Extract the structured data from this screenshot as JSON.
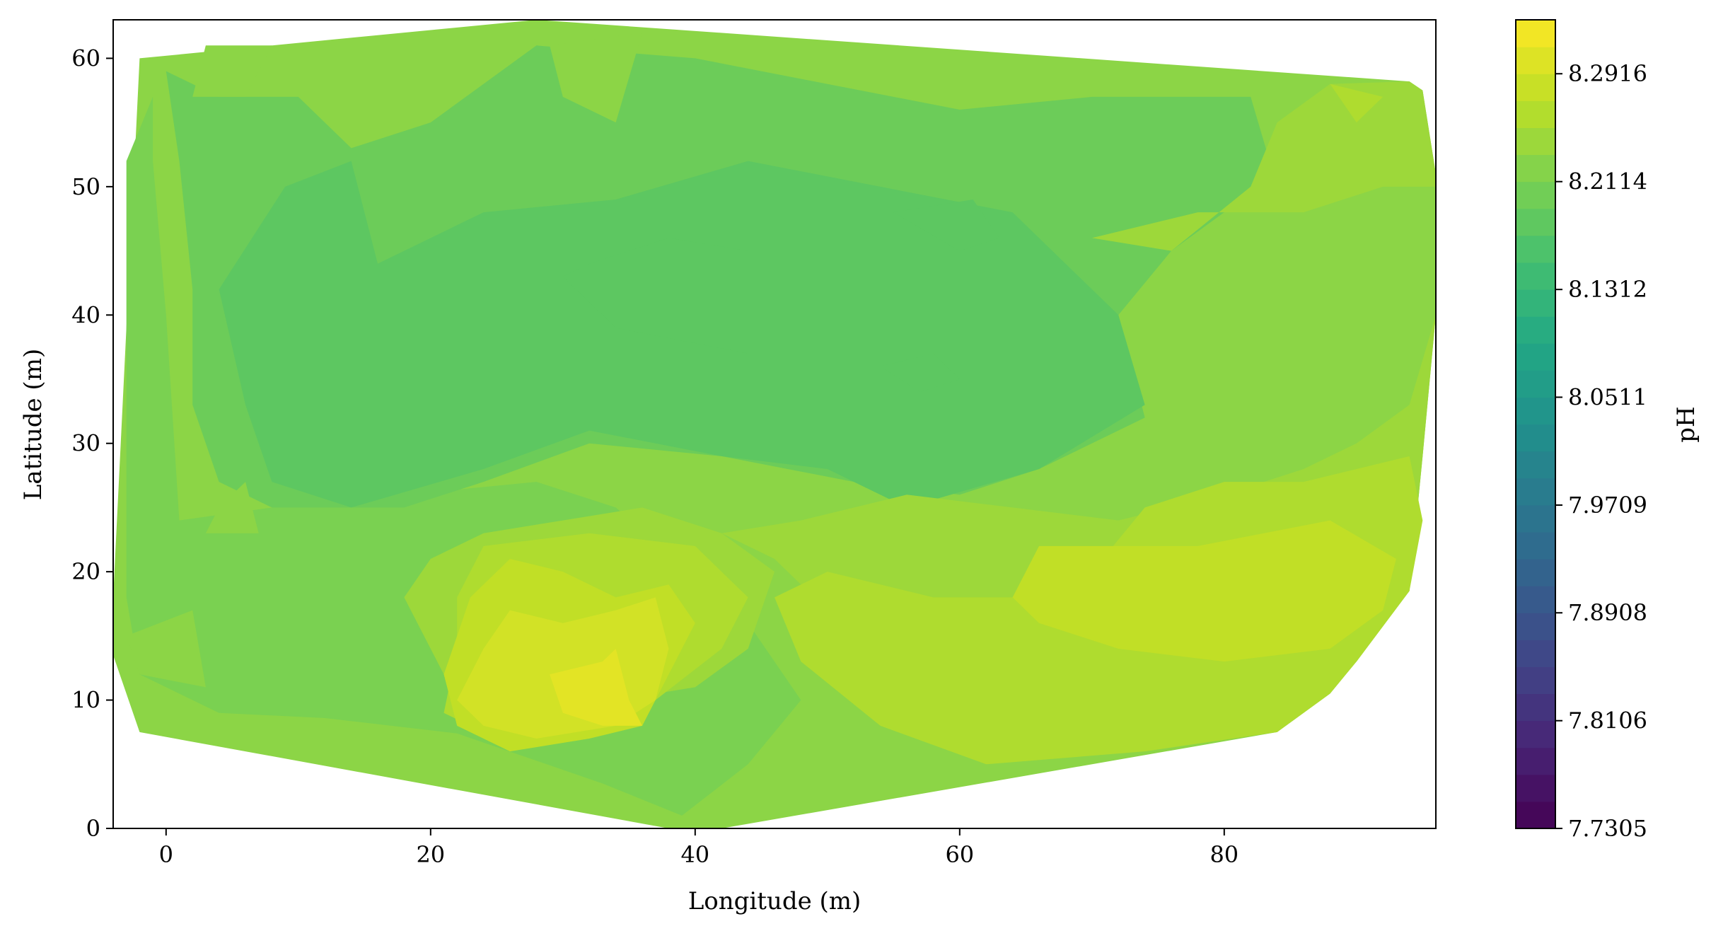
{
  "chart_data": {
    "type": "heatmap",
    "subtype": "filled-contour",
    "title": "",
    "xlabel": "Longitude (m)",
    "ylabel": "Latitude (m)",
    "xlim": [
      -4,
      96
    ],
    "ylim": [
      0,
      63
    ],
    "xticks": [
      0,
      20,
      40,
      60,
      80
    ],
    "yticks": [
      0,
      10,
      20,
      30,
      40,
      50,
      60
    ],
    "grid": false,
    "colormap": "viridis",
    "colorbar": {
      "label": "pH",
      "range": [
        7.7305,
        8.3317
      ],
      "n_levels": 30,
      "ticks": [
        7.7305,
        7.8106,
        7.8908,
        7.9709,
        8.0511,
        8.1312,
        8.2114,
        8.2916
      ],
      "tick_labels": [
        "7.7305",
        "7.8106",
        "7.8908",
        "7.9709",
        "8.0511",
        "8.1312",
        "8.2114",
        "8.2916"
      ]
    },
    "hull": [
      [
        28,
        63
      ],
      [
        94,
        58.2
      ],
      [
        95,
        57.5
      ],
      [
        96,
        51
      ],
      [
        96,
        40
      ],
      [
        95,
        29
      ],
      [
        94,
        18.5
      ],
      [
        90,
        13
      ],
      [
        88,
        10.5
      ],
      [
        84,
        7.5
      ],
      [
        42,
        0
      ],
      [
        38,
        0
      ],
      [
        -2,
        7.5
      ],
      [
        -4,
        13.5
      ],
      [
        -4,
        18
      ],
      [
        -2,
        60
      ]
    ],
    "regions": [
      {
        "level": 8.2114,
        "points": [
          [
            -1,
            57
          ],
          [
            -3,
            52
          ],
          [
            -3,
            18
          ],
          [
            -2,
            12
          ],
          [
            4,
            9
          ],
          [
            12,
            8.6
          ],
          [
            22,
            7.4
          ],
          [
            33,
            3.5
          ],
          [
            39,
            1
          ],
          [
            44,
            5
          ],
          [
            48,
            10
          ],
          [
            44,
            16
          ],
          [
            34,
            25
          ],
          [
            28,
            27
          ],
          [
            18,
            26
          ],
          [
            8,
            25
          ],
          [
            1,
            24
          ],
          [
            0,
            40
          ],
          [
            -1,
            52
          ]
        ]
      },
      {
        "level": 8.1955,
        "points": [
          [
            0,
            59
          ],
          [
            4,
            57
          ],
          [
            10,
            57
          ],
          [
            14,
            53
          ],
          [
            20,
            55
          ],
          [
            28,
            61
          ],
          [
            40,
            60
          ],
          [
            50,
            58
          ],
          [
            60,
            56
          ],
          [
            70,
            57
          ],
          [
            82,
            57
          ],
          [
            84,
            50
          ],
          [
            80,
            48
          ],
          [
            76,
            45
          ],
          [
            72,
            40
          ],
          [
            74,
            32
          ],
          [
            66,
            28
          ],
          [
            60,
            26
          ],
          [
            52,
            27
          ],
          [
            42,
            29
          ],
          [
            32,
            30
          ],
          [
            24,
            27
          ],
          [
            18,
            25
          ],
          [
            8,
            25
          ],
          [
            4,
            27
          ],
          [
            2,
            33
          ],
          [
            2,
            42
          ],
          [
            1,
            52
          ]
        ]
      },
      {
        "level": 8.1795,
        "points": [
          [
            9,
            50
          ],
          [
            14,
            52
          ],
          [
            16,
            44
          ],
          [
            24,
            48
          ],
          [
            34,
            49
          ],
          [
            44,
            52
          ],
          [
            54,
            50
          ],
          [
            64,
            48
          ],
          [
            72,
            40
          ],
          [
            74,
            33
          ],
          [
            66,
            28
          ],
          [
            56,
            25
          ],
          [
            50,
            28
          ],
          [
            42,
            29
          ],
          [
            32,
            31
          ],
          [
            24,
            28
          ],
          [
            14,
            25
          ],
          [
            8,
            27
          ],
          [
            6,
            33
          ],
          [
            4,
            42
          ]
        ]
      },
      {
        "level": 8.1795,
        "points": [
          [
            30,
            43
          ],
          [
            34,
            39
          ],
          [
            44,
            37
          ],
          [
            44,
            45
          ],
          [
            38,
            46
          ],
          [
            32,
            44
          ]
        ]
      },
      {
        "level": 8.1795,
        "points": [
          [
            55,
            48
          ],
          [
            61,
            49
          ],
          [
            63,
            46
          ],
          [
            60,
            45
          ]
        ]
      },
      {
        "level": 8.1795,
        "points": [
          [
            54,
            36
          ],
          [
            58,
            37
          ],
          [
            60,
            35
          ],
          [
            57,
            34
          ]
        ]
      },
      {
        "level": 8.2274,
        "points": [
          [
            3,
            61
          ],
          [
            8,
            61
          ],
          [
            6,
            57
          ],
          [
            2,
            57
          ]
        ]
      },
      {
        "level": 8.2274,
        "points": [
          [
            29,
            61
          ],
          [
            36,
            62
          ],
          [
            34,
            55
          ],
          [
            30,
            57
          ]
        ]
      },
      {
        "level": 8.2274,
        "points": [
          [
            4,
            25
          ],
          [
            6,
            27
          ],
          [
            7,
            23
          ],
          [
            3,
            23
          ]
        ]
      },
      {
        "level": 8.2274,
        "points": [
          [
            -3,
            15
          ],
          [
            2,
            17
          ],
          [
            3,
            11
          ],
          [
            -2,
            12
          ]
        ]
      },
      {
        "level": 8.2433,
        "points": [
          [
            70,
            46
          ],
          [
            78,
            48
          ],
          [
            86,
            48
          ],
          [
            92,
            50
          ],
          [
            96,
            50
          ],
          [
            96,
            40
          ],
          [
            94,
            33
          ],
          [
            90,
            30
          ],
          [
            86,
            28
          ],
          [
            80,
            26
          ],
          [
            72,
            24
          ],
          [
            64,
            25
          ],
          [
            56,
            26
          ],
          [
            48,
            24
          ],
          [
            42,
            23
          ],
          [
            46,
            21
          ],
          [
            52,
            15
          ],
          [
            58,
            12
          ],
          [
            62,
            9
          ],
          [
            72,
            8
          ],
          [
            84,
            7.5
          ],
          [
            90,
            13
          ],
          [
            94,
            18.5
          ],
          [
            95,
            29
          ],
          [
            96,
            40
          ],
          [
            96,
            51
          ],
          [
            95,
            57.5
          ],
          [
            94,
            58.2
          ],
          [
            88,
            58
          ],
          [
            84,
            55
          ],
          [
            82,
            50
          ],
          [
            76,
            45
          ]
        ]
      },
      {
        "level": 8.2433,
        "points": [
          [
            24,
            23
          ],
          [
            30,
            24
          ],
          [
            36,
            25
          ],
          [
            42,
            23
          ],
          [
            46,
            20
          ],
          [
            44,
            14
          ],
          [
            40,
            11
          ],
          [
            34,
            10
          ],
          [
            28,
            9
          ],
          [
            22,
            10
          ],
          [
            20,
            14
          ],
          [
            18,
            18
          ],
          [
            20,
            21
          ]
        ]
      },
      {
        "level": 8.2593,
        "points": [
          [
            70,
            20
          ],
          [
            74,
            25
          ],
          [
            80,
            27
          ],
          [
            86,
            27
          ],
          [
            94,
            29
          ],
          [
            95,
            24
          ],
          [
            94,
            18.5
          ],
          [
            90,
            13
          ],
          [
            88,
            10.5
          ],
          [
            84,
            7.5
          ],
          [
            74,
            6
          ],
          [
            62,
            5
          ],
          [
            54,
            8
          ],
          [
            48,
            13
          ],
          [
            46,
            18
          ],
          [
            50,
            20
          ],
          [
            58,
            18
          ],
          [
            64,
            18
          ]
        ]
      },
      {
        "level": 8.2593,
        "points": [
          [
            88,
            58
          ],
          [
            92,
            57
          ],
          [
            90,
            55
          ]
        ]
      },
      {
        "level": 8.2593,
        "points": [
          [
            24,
            22
          ],
          [
            32,
            23
          ],
          [
            40,
            22
          ],
          [
            44,
            18
          ],
          [
            42,
            14
          ],
          [
            37,
            10
          ],
          [
            31,
            8
          ],
          [
            25,
            7
          ],
          [
            21,
            9
          ],
          [
            22,
            14
          ],
          [
            22,
            18
          ]
        ]
      },
      {
        "level": 8.2752,
        "points": [
          [
            23,
            18
          ],
          [
            26,
            21
          ],
          [
            30,
            20
          ],
          [
            34,
            18
          ],
          [
            38,
            19
          ],
          [
            40,
            16
          ],
          [
            38,
            12
          ],
          [
            36,
            8
          ],
          [
            32,
            7
          ],
          [
            26,
            6
          ],
          [
            22,
            8
          ],
          [
            21,
            12
          ],
          [
            22,
            15
          ]
        ]
      },
      {
        "level": 8.2752,
        "points": [
          [
            66,
            22
          ],
          [
            78,
            22
          ],
          [
            88,
            24
          ],
          [
            93,
            21
          ],
          [
            92,
            17
          ],
          [
            88,
            14
          ],
          [
            80,
            13
          ],
          [
            72,
            14
          ],
          [
            66,
            16
          ],
          [
            64,
            18
          ]
        ]
      },
      {
        "level": 8.2911,
        "points": [
          [
            24,
            14
          ],
          [
            26,
            17
          ],
          [
            30,
            16
          ],
          [
            34,
            17
          ],
          [
            37,
            18
          ],
          [
            38,
            14
          ],
          [
            37,
            10
          ],
          [
            34,
            8
          ],
          [
            28,
            7
          ],
          [
            24,
            8
          ],
          [
            22,
            10
          ]
        ]
      },
      {
        "level": 8.3071,
        "points": [
          [
            29,
            12
          ],
          [
            33,
            13
          ],
          [
            34,
            14
          ],
          [
            35,
            10
          ],
          [
            36,
            8
          ],
          [
            33,
            8
          ],
          [
            30,
            9
          ]
        ]
      }
    ]
  }
}
